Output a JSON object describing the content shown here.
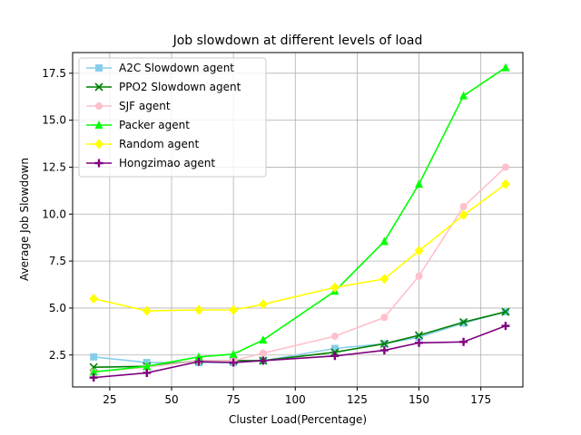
{
  "chart_data": {
    "type": "line",
    "title": "Job slowdown at different levels of load",
    "xlabel": "Cluster Load(Percentage)",
    "ylabel": "Average Job Slowdown",
    "xlim": [
      10,
      192
    ],
    "ylim": [
      0.8,
      18.6
    ],
    "xticks": [
      25,
      50,
      75,
      100,
      125,
      150,
      175
    ],
    "yticks": [
      2.5,
      5.0,
      7.5,
      10.0,
      12.5,
      15.0,
      17.5
    ],
    "xtick_labels": [
      "25",
      "50",
      "75",
      "100",
      "125",
      "150",
      "175"
    ],
    "ytick_labels": [
      "2.5",
      "5.0",
      "7.5",
      "10.0",
      "12.5",
      "15.0",
      "17.5"
    ],
    "grid": true,
    "legend_position": "top-left",
    "x": [
      18.5,
      40,
      61,
      75,
      87,
      116,
      136,
      150,
      168,
      185
    ],
    "series": [
      {
        "name": "A2C Slowdown agent",
        "color": "#87CEEB",
        "marker": "square",
        "values": [
          2.4,
          2.1,
          2.1,
          2.1,
          2.2,
          2.85,
          3.1,
          3.45,
          4.2,
          4.8
        ]
      },
      {
        "name": "PPO2 Slowdown agent",
        "color": "#008000",
        "marker": "x",
        "values": [
          1.85,
          1.9,
          2.2,
          2.2,
          2.2,
          2.65,
          3.1,
          3.55,
          4.25,
          4.8
        ]
      },
      {
        "name": "SJF agent",
        "color": "#FFC0CB",
        "marker": "circle",
        "values": [
          1.6,
          1.85,
          2.2,
          2.2,
          2.6,
          3.5,
          4.5,
          6.7,
          10.4,
          12.5
        ]
      },
      {
        "name": "Packer agent",
        "color": "#00FF00",
        "marker": "triangle",
        "values": [
          1.6,
          1.9,
          2.4,
          2.55,
          3.3,
          5.9,
          8.55,
          11.6,
          16.3,
          17.8
        ]
      },
      {
        "name": "Random agent",
        "color": "#FFFF00",
        "marker": "diamond",
        "values": [
          5.5,
          4.85,
          4.9,
          4.9,
          5.2,
          6.1,
          6.55,
          8.05,
          9.95,
          11.6
        ]
      },
      {
        "name": "Hongzimao agent",
        "color": "#800080",
        "marker": "plus",
        "values": [
          1.3,
          1.55,
          2.15,
          2.1,
          2.2,
          2.45,
          2.75,
          3.15,
          3.2,
          4.05
        ]
      }
    ]
  }
}
